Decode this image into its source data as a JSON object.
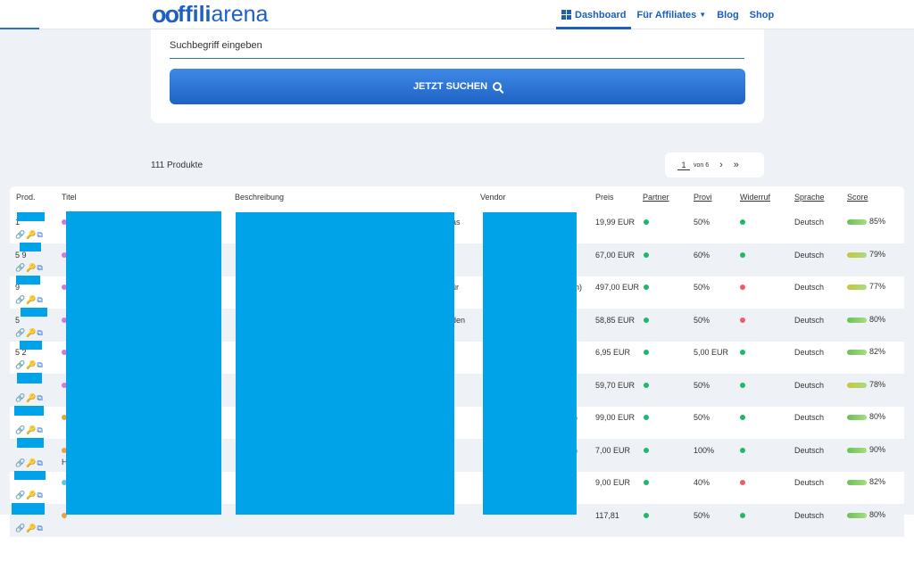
{
  "nav": {
    "logo": {
      "mark": "oo",
      "bold": "ffili",
      "light": "arena"
    },
    "links": [
      {
        "label": "Dashboard",
        "active": true
      },
      {
        "label": "Für Affiliates",
        "dropdown": true
      },
      {
        "label": "Blog"
      },
      {
        "label": "Shop"
      }
    ]
  },
  "search": {
    "placeholder": "Suchbegriff eingeben",
    "button_label": "JETZT SUCHEN"
  },
  "results": {
    "count_label": "111 Produkte",
    "page": "1",
    "of_label": "von 6",
    "next": "›",
    "last": "»"
  },
  "table": {
    "headers": [
      "Prod.",
      "Titel",
      "Beschreibung",
      "Vendor",
      "Preis",
      "Partner",
      "Provi",
      "Widerruf",
      "Sprache",
      "Score"
    ],
    "rows": [
      {
        "prod": "1",
        "title_dot": "#d57ad4",
        "title": "",
        "desc_tail": "as",
        "vendor_tail": "",
        "price": "19,99 EUR",
        "partner": "green",
        "provi": "50%",
        "widerruf": "green",
        "lang": "Deutsch",
        "score": "85%",
        "score_color": "#6ac05a"
      },
      {
        "prod": "5 9",
        "title_dot": "#d57ad4",
        "title": "",
        "desc_tail": "",
        "vendor_tail": "",
        "price": "67,00 EUR",
        "partner": "green",
        "provi": "60%",
        "widerruf": "green",
        "lang": "Deutsch",
        "score": "79%",
        "score_color": "#c9c63a"
      },
      {
        "prod": "9",
        "title_dot": "#d57ad4",
        "title": "",
        "desc_tail": "ür",
        "vendor_tail": "n)",
        "price": "497,00 EUR",
        "partner": "green",
        "provi": "50%",
        "widerruf": "red",
        "lang": "Deutsch",
        "score": "77%",
        "score_color": "#c9c63a"
      },
      {
        "prod": "5",
        "title_dot": "#d57ad4",
        "title": "",
        "desc_tail": "den",
        "vendor_tail": "",
        "price": "58,85 EUR",
        "partner": "green",
        "provi": "50%",
        "widerruf": "red",
        "lang": "Deutsch",
        "score": "80%",
        "score_color": "#6ac05a"
      },
      {
        "prod": "5 2",
        "title_dot": "#d57ad4",
        "title": "",
        "desc_tail": "",
        "vendor_tail": "",
        "price": "6,95 EUR",
        "partner": "green",
        "provi": "5,00 EUR",
        "widerruf": "green",
        "lang": "Deutsch",
        "score": "82%",
        "score_color": "#6ac05a"
      },
      {
        "prod": "",
        "title_dot": "#d57ad4",
        "title": "",
        "desc_tail": "",
        "vendor_tail": "",
        "price": "59,70 EUR",
        "partner": "green",
        "provi": "50%",
        "widerruf": "green",
        "lang": "Deutsch",
        "score": "78%",
        "score_color": "#c9c63a"
      },
      {
        "prod": "",
        "title_dot": "#e6a23c",
        "title": "",
        "desc_tail": "",
        "vendor_tail": ")",
        "price": "99,00 EUR",
        "partner": "green",
        "provi": "50%",
        "widerruf": "green",
        "lang": "Deutsch",
        "score": "80%",
        "score_color": "#6ac05a"
      },
      {
        "prod": "",
        "title_dot": "#e6a23c",
        "title": "H",
        "desc_tail": "",
        "vendor_tail": ")",
        "price": "7,00 EUR",
        "partner": "green",
        "provi": "100%",
        "widerruf": "green",
        "lang": "Deutsch",
        "score": "90%",
        "score_color": "#6ac05a"
      },
      {
        "prod": "",
        "title_dot": "#5bc8e0",
        "title": "",
        "desc_tail": "",
        "vendor_tail": "",
        "price": "9,00 EUR",
        "partner": "green",
        "provi": "40%",
        "widerruf": "red",
        "lang": "Deutsch",
        "score": "82%",
        "score_color": "#6ac05a"
      },
      {
        "prod": "",
        "title_dot": "#e6a23c",
        "title": "",
        "desc_tail": "",
        "vendor_tail": "",
        "price": "117,81",
        "partner": "green",
        "provi": "50%",
        "widerruf": "green",
        "lang": "Deutsch",
        "score": "80%",
        "score_color": "#6ac05a"
      }
    ],
    "row_icons": "🔗🔑⧉"
  },
  "colors": {
    "brand": "#1f5fc4",
    "accent": "#2a6fd0",
    "page_bg": "#eef1f6",
    "green": "#1fb86a",
    "red": "#ef5a6f",
    "redaction": "#00a2e8"
  }
}
